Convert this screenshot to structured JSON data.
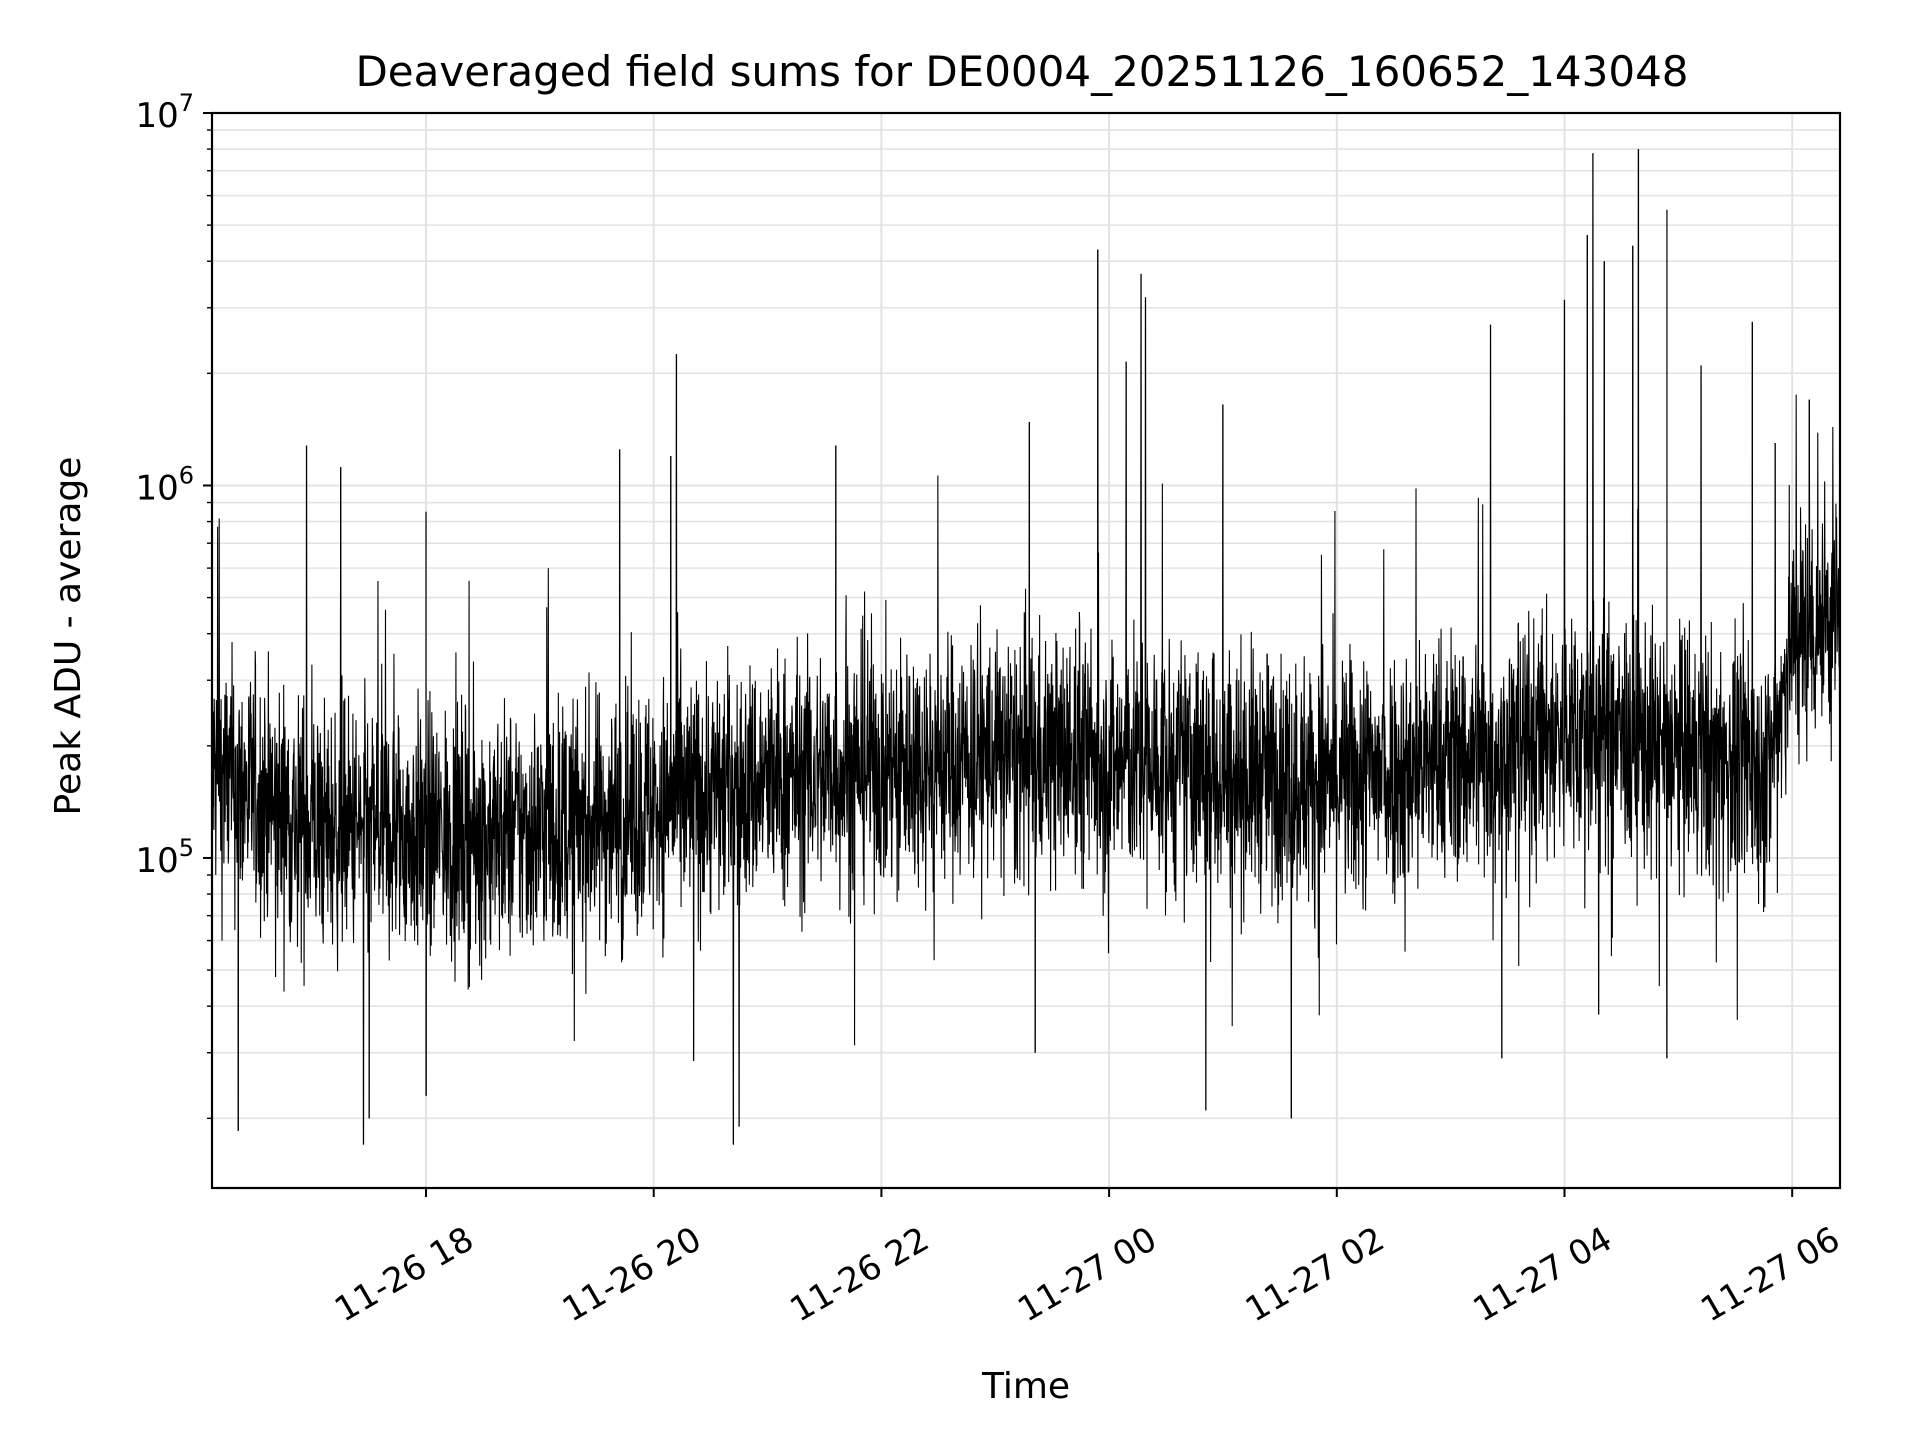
{
  "chart_data": {
    "type": "line",
    "title": "Deaveraged field sums for DE0004_20251126_160652_143048",
    "xlabel": "Time",
    "ylabel": "Peak ADU - average",
    "yscale": "log",
    "ylim": [
      13000,
      10000000
    ],
    "xlim_hours_from_midnight_1126": [
      16.12,
      30.42
    ],
    "grid": true,
    "x_ticks": [
      {
        "hours": 18,
        "label": "11-26 18"
      },
      {
        "hours": 20,
        "label": "11-26 20"
      },
      {
        "hours": 22,
        "label": "11-26 22"
      },
      {
        "hours": 24,
        "label": "11-27 00"
      },
      {
        "hours": 26,
        "label": "11-27 02"
      },
      {
        "hours": 28,
        "label": "11-27 04"
      },
      {
        "hours": 30,
        "label": "11-27 06"
      }
    ],
    "y_ticks": [
      {
        "value": 100000,
        "base": "10",
        "exp": "5"
      },
      {
        "value": 1000000,
        "base": "10",
        "exp": "6"
      },
      {
        "value": 10000000,
        "base": "10",
        "exp": "7"
      }
    ],
    "series": [
      {
        "name": "Peak ADU - average",
        "color": "#000000",
        "baseline_trend": [
          {
            "hours": 16.12,
            "value": 170000
          },
          {
            "hours": 17.0,
            "value": 120000
          },
          {
            "hours": 18.5,
            "value": 115000
          },
          {
            "hours": 19.5,
            "value": 125000
          },
          {
            "hours": 20.5,
            "value": 150000
          },
          {
            "hours": 22.0,
            "value": 180000
          },
          {
            "hours": 23.5,
            "value": 190000
          },
          {
            "hours": 24.5,
            "value": 175000
          },
          {
            "hours": 26.0,
            "value": 160000
          },
          {
            "hours": 27.5,
            "value": 200000
          },
          {
            "hours": 28.2,
            "value": 220000
          },
          {
            "hours": 29.0,
            "value": 190000
          },
          {
            "hours": 29.8,
            "value": 170000
          },
          {
            "hours": 30.0,
            "value": 400000
          },
          {
            "hours": 30.42,
            "value": 450000
          }
        ],
        "peaks": [
          {
            "hours": 16.95,
            "value": 1280000
          },
          {
            "hours": 17.25,
            "value": 1120000
          },
          {
            "hours": 18.0,
            "value": 850000
          },
          {
            "hours": 19.7,
            "value": 1250000
          },
          {
            "hours": 20.15,
            "value": 1200000
          },
          {
            "hours": 20.2,
            "value": 2250000
          },
          {
            "hours": 21.6,
            "value": 1280000
          },
          {
            "hours": 23.3,
            "value": 1480000
          },
          {
            "hours": 23.9,
            "value": 4300000
          },
          {
            "hours": 24.15,
            "value": 2150000
          },
          {
            "hours": 24.28,
            "value": 3700000
          },
          {
            "hours": 24.32,
            "value": 3200000
          },
          {
            "hours": 25.0,
            "value": 1650000
          },
          {
            "hours": 27.35,
            "value": 2700000
          },
          {
            "hours": 28.0,
            "value": 3150000
          },
          {
            "hours": 28.2,
            "value": 4700000
          },
          {
            "hours": 28.25,
            "value": 7800000
          },
          {
            "hours": 28.35,
            "value": 4000000
          },
          {
            "hours": 28.6,
            "value": 4400000
          },
          {
            "hours": 28.65,
            "value": 8000000
          },
          {
            "hours": 28.9,
            "value": 5500000
          },
          {
            "hours": 29.2,
            "value": 2100000
          },
          {
            "hours": 29.65,
            "value": 2750000
          },
          {
            "hours": 29.85,
            "value": 1300000
          },
          {
            "hours": 30.15,
            "value": 1700000
          }
        ],
        "troughs": [
          {
            "hours": 16.35,
            "value": 18500
          },
          {
            "hours": 17.45,
            "value": 17000
          },
          {
            "hours": 17.5,
            "value": 20000
          },
          {
            "hours": 18.0,
            "value": 23000
          },
          {
            "hours": 20.35,
            "value": 28500
          },
          {
            "hours": 20.7,
            "value": 17000
          },
          {
            "hours": 20.75,
            "value": 19000
          },
          {
            "hours": 23.35,
            "value": 30000
          },
          {
            "hours": 24.85,
            "value": 21000
          },
          {
            "hours": 25.6,
            "value": 20000
          },
          {
            "hours": 27.45,
            "value": 29000
          },
          {
            "hours": 28.3,
            "value": 38000
          },
          {
            "hours": 28.9,
            "value": 29000
          }
        ]
      }
    ]
  }
}
